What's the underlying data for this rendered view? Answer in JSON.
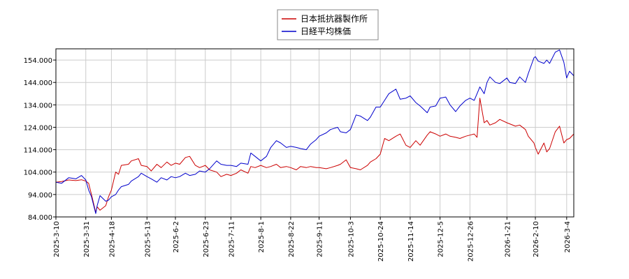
{
  "chart_data": {
    "type": "line",
    "title": "",
    "xlabel": "",
    "ylabel": "",
    "ylim": [
      84,
      159
    ],
    "yticks": [
      "84.000",
      "94.000",
      "104.000",
      "114.000",
      "124.000",
      "134.000",
      "144.000",
      "154.000"
    ],
    "ytick_values": [
      84,
      94,
      104,
      114,
      124,
      134,
      144,
      154
    ],
    "xticks": [
      "2025-3-10",
      "2025-3-31",
      "2025-4-18",
      "2025-5-13",
      "2025-6-2",
      "2025-6-23",
      "2025-7-11",
      "2025-8-1",
      "2025-8-22",
      "2025-9-11",
      "2025-10-3",
      "2025-10-24",
      "2025-11-14",
      "2025-12-5",
      "2025-12-26",
      "2026-1-21",
      "2026-2-10",
      "2026-3-4"
    ],
    "xrange": [
      "2025-3-10",
      "2026-3-9"
    ],
    "grid": true,
    "legend_position": "top-center",
    "series": [
      {
        "name": "日本抵抗器製作所",
        "color": "#cc0000",
        "points": [
          [
            "2025-3-10",
            99.5
          ],
          [
            "2025-3-14",
            99.8
          ],
          [
            "2025-3-19",
            100.5
          ],
          [
            "2025-3-24",
            100.2
          ],
          [
            "2025-3-28",
            100.6
          ],
          [
            "2025-3-31",
            100.0
          ],
          [
            "2025-4-2",
            99.0
          ],
          [
            "2025-4-4",
            94.0
          ],
          [
            "2025-4-7",
            86.0
          ],
          [
            "2025-4-8",
            88.5
          ],
          [
            "2025-4-10",
            87.0
          ],
          [
            "2025-4-14",
            89.0
          ],
          [
            "2025-4-16",
            93.0
          ],
          [
            "2025-4-18",
            96.0
          ],
          [
            "2025-4-21",
            104.0
          ],
          [
            "2025-4-23",
            103.0
          ],
          [
            "2025-4-25",
            107.0
          ],
          [
            "2025-4-30",
            107.5
          ],
          [
            "2025-5-2",
            109.0
          ],
          [
            "2025-5-7",
            110.0
          ],
          [
            "2025-5-9",
            107.0
          ],
          [
            "2025-5-13",
            106.5
          ],
          [
            "2025-5-16",
            104.5
          ],
          [
            "2025-5-20",
            107.5
          ],
          [
            "2025-5-23",
            106.0
          ],
          [
            "2025-5-27",
            108.5
          ],
          [
            "2025-5-30",
            107.0
          ],
          [
            "2025-6-2",
            108.0
          ],
          [
            "2025-6-5",
            107.5
          ],
          [
            "2025-6-9",
            110.5
          ],
          [
            "2025-6-12",
            111.0
          ],
          [
            "2025-6-16",
            107.0
          ],
          [
            "2025-6-19",
            106.0
          ],
          [
            "2025-6-23",
            107.0
          ],
          [
            "2025-6-26",
            105.0
          ],
          [
            "2025-7-1",
            104.0
          ],
          [
            "2025-7-4",
            102.0
          ],
          [
            "2025-7-8",
            103.0
          ],
          [
            "2025-7-11",
            102.5
          ],
          [
            "2025-7-15",
            103.5
          ],
          [
            "2025-7-18",
            105.0
          ],
          [
            "2025-7-23",
            103.5
          ],
          [
            "2025-7-25",
            106.5
          ],
          [
            "2025-7-28",
            106.0
          ],
          [
            "2025-8-1",
            107.0
          ],
          [
            "2025-8-5",
            106.0
          ],
          [
            "2025-8-8",
            106.5
          ],
          [
            "2025-8-12",
            107.5
          ],
          [
            "2025-8-15",
            106.0
          ],
          [
            "2025-8-19",
            106.5
          ],
          [
            "2025-8-22",
            106.0
          ],
          [
            "2025-8-26",
            105.0
          ],
          [
            "2025-8-29",
            106.5
          ],
          [
            "2025-9-2",
            106.0
          ],
          [
            "2025-9-5",
            106.5
          ],
          [
            "2025-9-9",
            106.0
          ],
          [
            "2025-9-11",
            106.0
          ],
          [
            "2025-9-16",
            105.5
          ],
          [
            "2025-9-19",
            106.0
          ],
          [
            "2025-9-24",
            107.0
          ],
          [
            "2025-9-26",
            107.5
          ],
          [
            "2025-9-30",
            109.5
          ],
          [
            "2025-10-3",
            106.0
          ],
          [
            "2025-10-7",
            105.5
          ],
          [
            "2025-10-10",
            105.0
          ],
          [
            "2025-10-15",
            107.0
          ],
          [
            "2025-10-17",
            108.5
          ],
          [
            "2025-10-21",
            110.0
          ],
          [
            "2025-10-24",
            112.0
          ],
          [
            "2025-10-27",
            119.0
          ],
          [
            "2025-10-30",
            118.0
          ],
          [
            "2025-11-4",
            120.0
          ],
          [
            "2025-11-7",
            121.0
          ],
          [
            "2025-11-11",
            116.0
          ],
          [
            "2025-11-14",
            115.0
          ],
          [
            "2025-11-18",
            118.0
          ],
          [
            "2025-11-21",
            116.0
          ],
          [
            "2025-11-26",
            120.5
          ],
          [
            "2025-11-28",
            122.0
          ],
          [
            "2025-12-2",
            121.0
          ],
          [
            "2025-12-5",
            120.0
          ],
          [
            "2025-12-9",
            121.0
          ],
          [
            "2025-12-12",
            120.0
          ],
          [
            "2025-12-16",
            119.5
          ],
          [
            "2025-12-19",
            119.0
          ],
          [
            "2025-12-23",
            120.0
          ],
          [
            "2025-12-26",
            120.5
          ],
          [
            "2025-12-29",
            121.0
          ],
          [
            "2025-12-31",
            119.5
          ],
          [
            "2026-1-2",
            137.0
          ],
          [
            "2026-1-5",
            126.0
          ],
          [
            "2026-1-7",
            127.0
          ],
          [
            "2026-1-9",
            125.0
          ],
          [
            "2026-1-13",
            126.0
          ],
          [
            "2026-1-16",
            127.5
          ],
          [
            "2026-1-21",
            126.0
          ],
          [
            "2026-1-23",
            125.5
          ],
          [
            "2026-1-27",
            124.5
          ],
          [
            "2026-1-30",
            125.0
          ],
          [
            "2026-2-3",
            123.0
          ],
          [
            "2026-2-5",
            120.0
          ],
          [
            "2026-2-9",
            117.0
          ],
          [
            "2026-2-10",
            115.0
          ],
          [
            "2026-2-12",
            112.0
          ],
          [
            "2026-2-16",
            117.0
          ],
          [
            "2026-2-18",
            113.0
          ],
          [
            "2026-2-20",
            114.5
          ],
          [
            "2026-2-24",
            122.0
          ],
          [
            "2026-2-27",
            124.5
          ],
          [
            "2026-3-2",
            117.0
          ],
          [
            "2026-3-4",
            118.5
          ],
          [
            "2026-3-6",
            119.0
          ],
          [
            "2026-3-9",
            121.0
          ]
        ]
      },
      {
        "name": "日経平均株価",
        "color": "#0000cc",
        "points": [
          [
            "2025-3-10",
            99.5
          ],
          [
            "2025-3-14",
            99.0
          ],
          [
            "2025-3-19",
            101.5
          ],
          [
            "2025-3-24",
            101.0
          ],
          [
            "2025-3-28",
            102.5
          ],
          [
            "2025-3-31",
            100.5
          ],
          [
            "2025-4-2",
            96.0
          ],
          [
            "2025-4-4",
            93.0
          ],
          [
            "2025-4-7",
            85.5
          ],
          [
            "2025-4-8",
            89.0
          ],
          [
            "2025-4-10",
            93.5
          ],
          [
            "2025-4-14",
            91.0
          ],
          [
            "2025-4-16",
            91.5
          ],
          [
            "2025-4-18",
            93.0
          ],
          [
            "2025-4-21",
            94.0
          ],
          [
            "2025-4-23",
            96.0
          ],
          [
            "2025-4-25",
            97.5
          ],
          [
            "2025-4-30",
            98.5
          ],
          [
            "2025-5-2",
            100.0
          ],
          [
            "2025-5-7",
            102.0
          ],
          [
            "2025-5-9",
            103.5
          ],
          [
            "2025-5-13",
            102.0
          ],
          [
            "2025-5-16",
            101.0
          ],
          [
            "2025-5-20",
            99.5
          ],
          [
            "2025-5-23",
            101.5
          ],
          [
            "2025-5-27",
            100.5
          ],
          [
            "2025-5-30",
            102.0
          ],
          [
            "2025-6-2",
            101.5
          ],
          [
            "2025-6-5",
            102.0
          ],
          [
            "2025-6-9",
            103.5
          ],
          [
            "2025-6-12",
            102.5
          ],
          [
            "2025-6-16",
            103.0
          ],
          [
            "2025-6-19",
            104.5
          ],
          [
            "2025-6-23",
            104.0
          ],
          [
            "2025-6-26",
            105.5
          ],
          [
            "2025-7-1",
            109.0
          ],
          [
            "2025-7-4",
            107.5
          ],
          [
            "2025-7-8",
            107.0
          ],
          [
            "2025-7-11",
            107.0
          ],
          [
            "2025-7-15",
            106.5
          ],
          [
            "2025-7-18",
            108.0
          ],
          [
            "2025-7-23",
            107.5
          ],
          [
            "2025-7-25",
            112.5
          ],
          [
            "2025-7-28",
            111.0
          ],
          [
            "2025-8-1",
            109.0
          ],
          [
            "2025-8-5",
            111.0
          ],
          [
            "2025-8-8",
            115.0
          ],
          [
            "2025-8-12",
            118.0
          ],
          [
            "2025-8-15",
            117.0
          ],
          [
            "2025-8-19",
            115.0
          ],
          [
            "2025-8-22",
            115.5
          ],
          [
            "2025-8-26",
            115.0
          ],
          [
            "2025-8-29",
            114.5
          ],
          [
            "2025-9-2",
            114.0
          ],
          [
            "2025-9-5",
            116.5
          ],
          [
            "2025-9-9",
            118.5
          ],
          [
            "2025-9-11",
            120.0
          ],
          [
            "2025-9-16",
            121.5
          ],
          [
            "2025-9-19",
            123.0
          ],
          [
            "2025-9-24",
            124.0
          ],
          [
            "2025-9-26",
            122.0
          ],
          [
            "2025-9-30",
            121.5
          ],
          [
            "2025-10-3",
            123.0
          ],
          [
            "2025-10-7",
            129.5
          ],
          [
            "2025-10-10",
            129.0
          ],
          [
            "2025-10-15",
            127.0
          ],
          [
            "2025-10-17",
            128.5
          ],
          [
            "2025-10-21",
            133.0
          ],
          [
            "2025-10-24",
            133.0
          ],
          [
            "2025-10-27",
            136.0
          ],
          [
            "2025-10-30",
            139.0
          ],
          [
            "2025-11-4",
            141.0
          ],
          [
            "2025-11-7",
            136.5
          ],
          [
            "2025-11-11",
            137.0
          ],
          [
            "2025-11-14",
            138.0
          ],
          [
            "2025-11-18",
            135.0
          ],
          [
            "2025-11-21",
            133.5
          ],
          [
            "2025-11-26",
            130.5
          ],
          [
            "2025-11-28",
            133.0
          ],
          [
            "2025-12-2",
            133.5
          ],
          [
            "2025-12-5",
            137.0
          ],
          [
            "2025-12-9",
            137.5
          ],
          [
            "2025-12-12",
            134.0
          ],
          [
            "2025-12-16",
            131.0
          ],
          [
            "2025-12-19",
            133.5
          ],
          [
            "2025-12-23",
            136.0
          ],
          [
            "2025-12-26",
            137.0
          ],
          [
            "2025-12-29",
            136.0
          ],
          [
            "2025-12-31",
            139.0
          ],
          [
            "2026-1-2",
            142.0
          ],
          [
            "2026-1-5",
            139.0
          ],
          [
            "2026-1-7",
            144.0
          ],
          [
            "2026-1-9",
            146.5
          ],
          [
            "2026-1-13",
            144.0
          ],
          [
            "2026-1-16",
            143.5
          ],
          [
            "2026-1-21",
            146.0
          ],
          [
            "2026-1-23",
            144.0
          ],
          [
            "2026-1-27",
            143.5
          ],
          [
            "2026-1-30",
            146.5
          ],
          [
            "2026-2-3",
            144.0
          ],
          [
            "2026-2-5",
            148.0
          ],
          [
            "2026-2-9",
            155.0
          ],
          [
            "2026-2-10",
            155.5
          ],
          [
            "2026-2-12",
            153.5
          ],
          [
            "2026-2-16",
            152.5
          ],
          [
            "2026-2-18",
            154.0
          ],
          [
            "2026-2-20",
            152.5
          ],
          [
            "2026-2-24",
            157.5
          ],
          [
            "2026-2-27",
            158.5
          ],
          [
            "2026-3-2",
            153.0
          ],
          [
            "2026-3-4",
            146.0
          ],
          [
            "2026-3-6",
            149.0
          ],
          [
            "2026-3-9",
            147.0
          ]
        ]
      }
    ]
  }
}
